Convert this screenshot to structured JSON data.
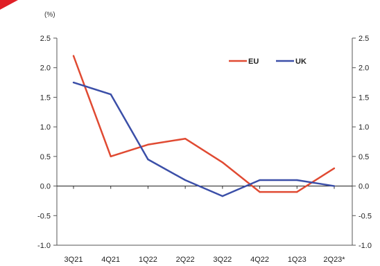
{
  "chart_data": {
    "type": "line",
    "unit_label": "(%)",
    "categories": [
      "3Q21",
      "4Q21",
      "1Q22",
      "2Q22",
      "3Q22",
      "4Q22",
      "1Q23",
      "2Q23*"
    ],
    "ylim": [
      -1.0,
      2.5
    ],
    "yticks": [
      "2.5",
      "2.0",
      "1.5",
      "1.0",
      "0.5",
      "0.0",
      "-0.5",
      "-1.0"
    ],
    "ytick_values": [
      2.5,
      2.0,
      1.5,
      1.0,
      0.5,
      0.0,
      -0.5,
      -1.0
    ],
    "legend_position": "top-right",
    "grid": false,
    "series": [
      {
        "name": "EU",
        "color": "#e04a32",
        "values": [
          2.2,
          0.5,
          0.7,
          0.8,
          0.4,
          -0.1,
          -0.1,
          0.3
        ]
      },
      {
        "name": "UK",
        "color": "#3b4fa8",
        "values": [
          1.75,
          1.55,
          0.45,
          0.1,
          -0.17,
          0.1,
          0.1,
          0.0
        ]
      }
    ]
  },
  "decor": {
    "accent_color": "#e01f26"
  }
}
